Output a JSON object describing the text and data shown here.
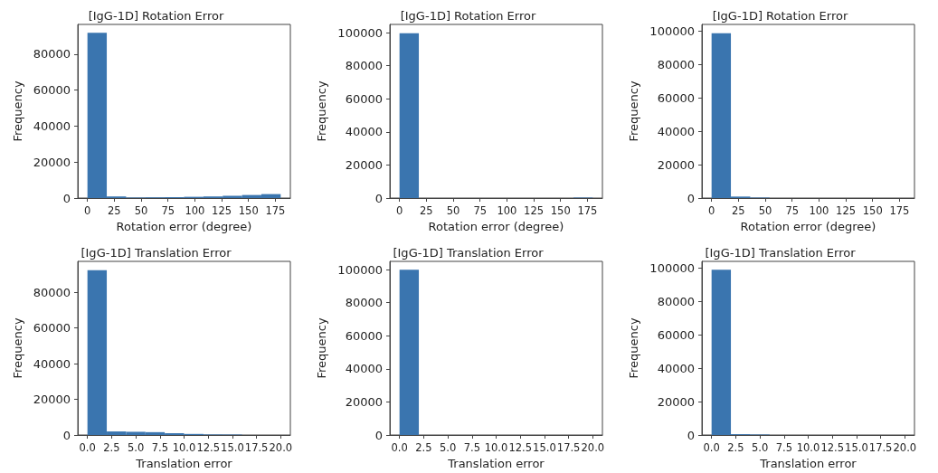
{
  "chart_data": [
    {
      "type": "histogram",
      "title": "[IgG-1D] Rotation Error",
      "xlabel": "Rotation error (degree)",
      "ylabel": "Frequency",
      "color": "#3a75af",
      "bins": [
        0,
        18,
        36,
        54,
        72,
        90,
        108,
        126,
        144,
        162,
        180
      ],
      "values": [
        91800,
        900,
        300,
        400,
        500,
        700,
        900,
        1200,
        1700,
        2200
      ],
      "xlim": [
        -9,
        189
      ],
      "xticks": [
        0,
        25,
        50,
        75,
        100,
        125,
        150,
        175
      ],
      "ylim": [
        0,
        96500
      ],
      "yticks": [
        0,
        20000,
        40000,
        60000,
        80000
      ],
      "grid": false
    },
    {
      "type": "histogram",
      "title": "[IgG-1D] Rotation Error",
      "xlabel": "Rotation error (degree)",
      "ylabel": "Frequency",
      "color": "#3a75af",
      "bins": [
        0,
        18,
        36,
        54,
        72,
        90,
        108,
        126,
        144,
        162,
        180
      ],
      "values": [
        99700,
        0,
        0,
        0,
        0,
        0,
        0,
        0,
        0,
        300
      ],
      "xlim": [
        -9,
        189
      ],
      "xticks": [
        0,
        25,
        50,
        75,
        100,
        125,
        150,
        175
      ],
      "ylim": [
        0,
        105000
      ],
      "yticks": [
        0,
        20000,
        40000,
        60000,
        80000,
        100000
      ],
      "grid": false
    },
    {
      "type": "histogram",
      "title": "[IgG-1D] Rotation Error",
      "xlabel": "Rotation error (degree)",
      "ylabel": "Frequency",
      "color": "#3a75af",
      "bins": [
        0,
        18,
        36,
        54,
        72,
        90,
        108,
        126,
        144,
        162,
        180
      ],
      "values": [
        98700,
        900,
        300,
        0,
        0,
        0,
        0,
        0,
        0,
        0
      ],
      "xlim": [
        -9,
        189
      ],
      "xticks": [
        0,
        25,
        50,
        75,
        100,
        125,
        150,
        175
      ],
      "ylim": [
        0,
        104000
      ],
      "yticks": [
        0,
        20000,
        40000,
        60000,
        80000,
        100000
      ],
      "grid": false
    },
    {
      "type": "histogram",
      "title": "[IgG-1D] Translation Error",
      "xlabel": "Translation error",
      "ylabel": "Frequency",
      "color": "#3a75af",
      "bins": [
        0,
        2,
        4,
        6,
        8,
        10,
        12,
        14,
        16,
        18,
        20
      ],
      "values": [
        92400,
        2000,
        1800,
        1600,
        1000,
        600,
        300,
        300,
        0,
        0
      ],
      "xlim": [
        -1,
        21
      ],
      "xticks": [
        {
          "value": 0,
          "label": "0.0"
        },
        {
          "value": 2.5,
          "label": "2.5"
        },
        {
          "value": 5,
          "label": "5.0"
        },
        {
          "value": 7.5,
          "label": "7.5"
        },
        {
          "value": 10,
          "label": "10.0"
        },
        {
          "value": 12.5,
          "label": "12.5"
        },
        {
          "value": 15,
          "label": "15.0"
        },
        {
          "value": 17.5,
          "label": "17.5"
        },
        {
          "value": 20,
          "label": "20.0"
        }
      ],
      "ylim": [
        0,
        97300
      ],
      "yticks": [
        0,
        20000,
        40000,
        60000,
        80000
      ],
      "grid": false
    },
    {
      "type": "histogram",
      "title": "[IgG-1D] Translation Error",
      "xlabel": "Translation error",
      "ylabel": "Frequency",
      "color": "#3a75af",
      "bins": [
        0,
        2,
        4,
        6,
        8,
        10,
        12,
        14,
        16,
        18,
        20
      ],
      "values": [
        100000,
        0,
        0,
        0,
        0,
        0,
        0,
        0,
        0,
        0
      ],
      "xlim": [
        -1,
        21
      ],
      "xticks": [
        {
          "value": 0,
          "label": "0.0"
        },
        {
          "value": 2.5,
          "label": "2.5"
        },
        {
          "value": 5,
          "label": "5.0"
        },
        {
          "value": 7.5,
          "label": "7.5"
        },
        {
          "value": 10,
          "label": "10.0"
        },
        {
          "value": 12.5,
          "label": "12.5"
        },
        {
          "value": 15,
          "label": "15.0"
        },
        {
          "value": 17.5,
          "label": "17.5"
        },
        {
          "value": 20,
          "label": "20.0"
        }
      ],
      "ylim": [
        0,
        105000
      ],
      "yticks": [
        0,
        20000,
        40000,
        60000,
        80000,
        100000
      ],
      "grid": false
    },
    {
      "type": "histogram",
      "title": "[IgG-1D] Translation Error",
      "xlabel": "Translation error",
      "ylabel": "Frequency",
      "color": "#3a75af",
      "bins": [
        0,
        2,
        4,
        6,
        8,
        10,
        12,
        14,
        16,
        18,
        20
      ],
      "values": [
        99200,
        500,
        300,
        0,
        0,
        0,
        0,
        0,
        0,
        0
      ],
      "xlim": [
        -1,
        21
      ],
      "xticks": [
        {
          "value": 0,
          "label": "0.0"
        },
        {
          "value": 2.5,
          "label": "2.5"
        },
        {
          "value": 5,
          "label": "5.0"
        },
        {
          "value": 7.5,
          "label": "7.5"
        },
        {
          "value": 10,
          "label": "10.0"
        },
        {
          "value": 12.5,
          "label": "12.5"
        },
        {
          "value": 15,
          "label": "15.0"
        },
        {
          "value": 17.5,
          "label": "17.5"
        },
        {
          "value": 20,
          "label": "20.0"
        }
      ],
      "ylim": [
        0,
        104200
      ],
      "yticks": [
        0,
        20000,
        40000,
        60000,
        80000,
        100000
      ],
      "grid": false
    }
  ]
}
